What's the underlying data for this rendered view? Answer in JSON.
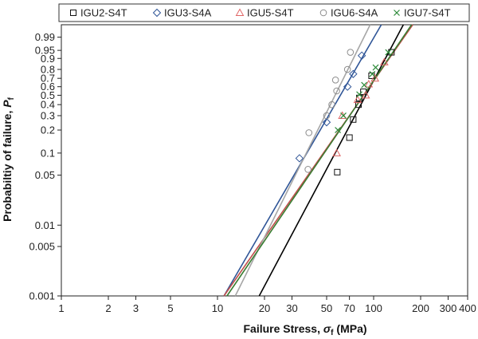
{
  "chart_data": {
    "type": "scatter",
    "title": "",
    "xlabel_main": "Failure Stress, ",
    "xlabel_symbol": "σ",
    "xlabel_sub": "f",
    "xlabel_unit": " (MPa)",
    "ylabel_main": "Probabiltiy of failure, ",
    "ylabel_symbol": "P",
    "ylabel_sub": "f",
    "x_scale": "log",
    "y_scale": "weibull",
    "xlim": [
      1,
      400
    ],
    "ylim": [
      0.001,
      0.999
    ],
    "x_ticks": [
      {
        "value": 1,
        "label": "1"
      },
      {
        "value": 2,
        "label": "2"
      },
      {
        "value": 3,
        "label": "3"
      },
      {
        "value": 5,
        "label": "5"
      },
      {
        "value": 10,
        "label": "10"
      },
      {
        "value": 20,
        "label": "20"
      },
      {
        "value": 30,
        "label": "30"
      },
      {
        "value": 50,
        "label": "50"
      },
      {
        "value": 70,
        "label": "70"
      },
      {
        "value": 100,
        "label": "100"
      },
      {
        "value": 200,
        "label": "200"
      },
      {
        "value": 300,
        "label": "300"
      },
      {
        "value": 400,
        "label": "400"
      }
    ],
    "y_ticks": [
      {
        "value": 0.001,
        "label": "0.001"
      },
      {
        "value": 0.005,
        "label": "0.005"
      },
      {
        "value": 0.01,
        "label": "0.01"
      },
      {
        "value": 0.05,
        "label": "0.05"
      },
      {
        "value": 0.1,
        "label": "0.1"
      },
      {
        "value": 0.2,
        "label": "0.2"
      },
      {
        "value": 0.3,
        "label": "0.3"
      },
      {
        "value": 0.4,
        "label": "0.4"
      },
      {
        "value": 0.5,
        "label": "0.5"
      },
      {
        "value": 0.6,
        "label": "0.6"
      },
      {
        "value": 0.7,
        "label": "0.7"
      },
      {
        "value": 0.8,
        "label": "0.8"
      },
      {
        "value": 0.9,
        "label": "0.9"
      },
      {
        "value": 0.95,
        "label": "0.95"
      },
      {
        "value": 0.99,
        "label": "0.99"
      }
    ],
    "grid": false,
    "legend_position": "top",
    "series": [
      {
        "name": "IGU2-S4T",
        "marker": "square",
        "color": "#111111",
        "line_color": "#000000",
        "points": [
          [
            58.5,
            0.055
          ],
          [
            70,
            0.16
          ],
          [
            74,
            0.27
          ],
          [
            80,
            0.4
          ],
          [
            81,
            0.47
          ],
          [
            86,
            0.54
          ],
          [
            97,
            0.73
          ],
          [
            130,
            0.94
          ]
        ],
        "fit": [
          [
            18.5,
            0.001
          ],
          [
            155,
            0.999
          ]
        ]
      },
      {
        "name": "IGU3-S4A",
        "marker": "diamond",
        "color": "#2f5597",
        "line_color": "#2f5597",
        "points": [
          [
            33.5,
            0.085
          ],
          [
            50,
            0.25
          ],
          [
            68,
            0.6
          ],
          [
            74,
            0.75
          ],
          [
            84,
            0.92
          ]
        ],
        "fit": [
          [
            11,
            0.001
          ],
          [
            112,
            0.999
          ]
        ]
      },
      {
        "name": "IGU5-S4T",
        "marker": "triangle",
        "color": "#e06666",
        "line_color": "#c0504d",
        "points": [
          [
            58,
            0.1
          ],
          [
            63,
            0.3
          ],
          [
            79,
            0.45
          ],
          [
            89,
            0.5
          ],
          [
            93,
            0.63
          ],
          [
            102,
            0.7
          ],
          [
            117,
            0.87
          ]
        ],
        "fit": [
          [
            11,
            0.001
          ],
          [
            178,
            0.999
          ]
        ]
      },
      {
        "name": "IGU6-S4A",
        "marker": "circle",
        "color": "#8c8c8c",
        "line_color": "#a6a6a6",
        "points": [
          [
            38,
            0.06
          ],
          [
            38.5,
            0.185
          ],
          [
            50,
            0.3
          ],
          [
            54,
            0.4
          ],
          [
            57,
            0.68
          ],
          [
            58,
            0.55
          ],
          [
            68,
            0.8
          ],
          [
            71,
            0.94
          ]
        ],
        "fit": [
          [
            13,
            0.001
          ],
          [
            95,
            0.999
          ]
        ]
      },
      {
        "name": "IGU7-S4T",
        "marker": "x",
        "color": "#2e8b3a",
        "line_color": "#3a7d32",
        "points": [
          [
            59,
            0.2
          ],
          [
            64,
            0.3
          ],
          [
            81,
            0.51
          ],
          [
            87,
            0.62
          ],
          [
            98,
            0.75
          ],
          [
            103,
            0.82
          ],
          [
            124,
            0.94
          ]
        ],
        "fit": [
          [
            11.5,
            0.001
          ],
          [
            175,
            0.999
          ]
        ]
      }
    ]
  }
}
